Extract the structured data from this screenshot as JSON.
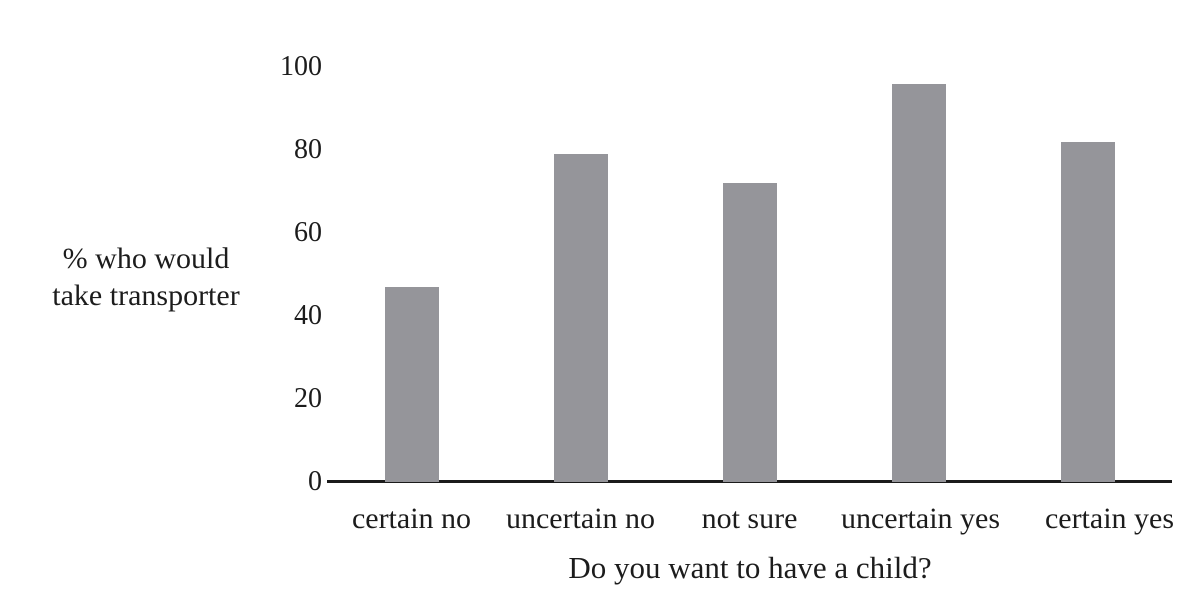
{
  "chart_data": {
    "type": "bar",
    "title": "",
    "categories": [
      "certain no",
      "uncertain no",
      "not sure",
      "uncertain yes",
      "certain yes"
    ],
    "values": [
      47,
      79,
      72,
      96,
      82
    ],
    "xlabel": "Do you want to have a child?",
    "ylabel": "% who would take transporter",
    "ylabel_lines": [
      "% who would",
      "take transporter"
    ],
    "yticks": [
      0,
      20,
      40,
      60,
      80,
      100
    ],
    "ylim": [
      0,
      100
    ],
    "grid": false,
    "legend": false,
    "colors": {
      "bar": "#95959a",
      "axis": "#1b1b1b",
      "text": "#1c1c1c",
      "background": "#ffffff"
    }
  }
}
